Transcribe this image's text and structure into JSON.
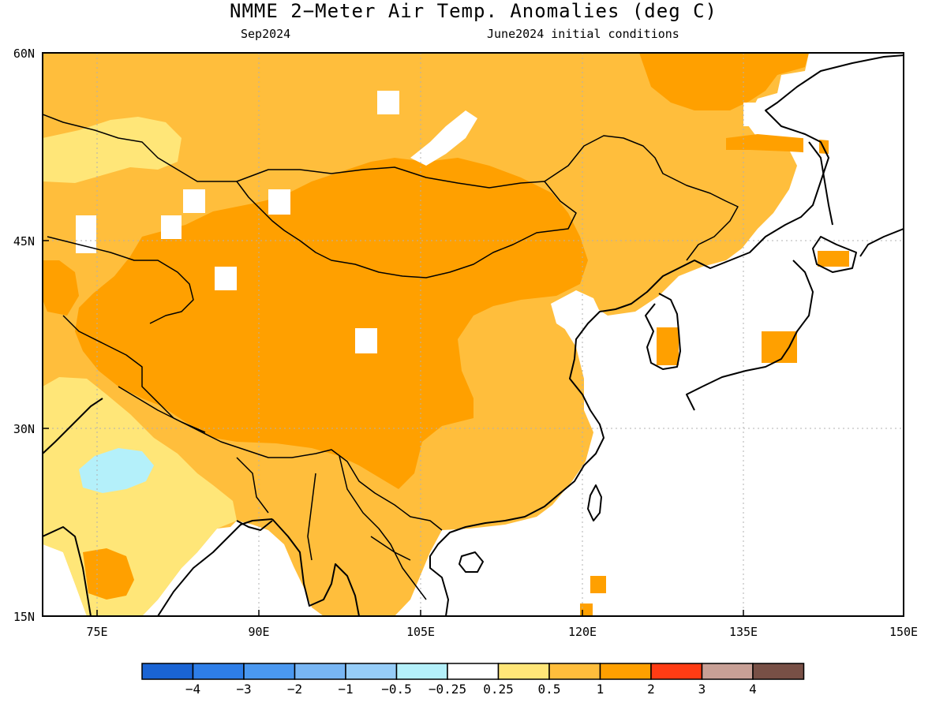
{
  "title": "NMME 2−Meter Air Temp. Anomalies (deg C)",
  "subtitle_left": "Sep2024",
  "subtitle_right": "June2024 initial conditions",
  "axes": {
    "lat_ticks": [
      "60N",
      "45N",
      "30N",
      "15N"
    ],
    "lon_ticks": [
      "75E",
      "90E",
      "105E",
      "120E",
      "135E",
      "150E"
    ],
    "lat_range": [
      15,
      60
    ],
    "lon_range": [
      70,
      150
    ],
    "grid": true
  },
  "colorbar": {
    "colors": [
      "#1a64d4",
      "#2e7ee8",
      "#4a98f0",
      "#78b6f4",
      "#96cdf8",
      "#b4f0fa",
      "#ffffff",
      "#ffe678",
      "#ffbe3c",
      "#ffa000",
      "#ff3c14",
      "#c8a096",
      "#785046"
    ],
    "labels": [
      "−4",
      "−3",
      "−2",
      "−1",
      "−0.5",
      "−0.25",
      "0.25",
      "0.5",
      "1",
      "2",
      "3",
      "4"
    ]
  }
}
